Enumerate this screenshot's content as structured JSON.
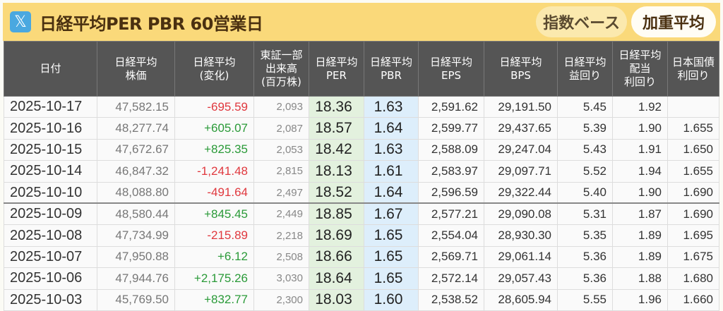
{
  "header": {
    "icon": "x-logo-icon",
    "title": "日経平均PER PBR 60営業日",
    "toggle_index": "指数ベース",
    "toggle_weighted": "加重平均"
  },
  "colors": {
    "title_bg": "#fad97a",
    "header_bg": "#555555",
    "per_bg": "#e3f1de",
    "pbr_bg": "#ddeefb",
    "negative": "#e0383e",
    "positive": "#2a9a38"
  },
  "table": {
    "columns": [
      [
        "日付"
      ],
      [
        "日経平均",
        "株価"
      ],
      [
        "日経平均",
        "(変化)"
      ],
      [
        "東証一部",
        "出来高",
        "(百万株)"
      ],
      [
        "日経平均",
        "PER"
      ],
      [
        "日経平均",
        "PBR"
      ],
      [
        "日経平均",
        "EPS"
      ],
      [
        "日経平均",
        "BPS"
      ],
      [
        "日経平均",
        "益回り"
      ],
      [
        "日経平均",
        "配当",
        "利回り"
      ],
      [
        "日本国債",
        "利回り"
      ]
    ],
    "rows": [
      [
        "2025-10-17",
        "47,582.15",
        "-695.59",
        "2,093",
        "18.36",
        "1.63",
        "2,591.62",
        "29,191.50",
        "5.45",
        "1.92",
        ""
      ],
      [
        "2025-10-16",
        "48,277.74",
        "+605.07",
        "2,087",
        "18.57",
        "1.64",
        "2,599.77",
        "29,437.65",
        "5.39",
        "1.90",
        "1.655"
      ],
      [
        "2025-10-15",
        "47,672.67",
        "+825.35",
        "2,053",
        "18.42",
        "1.63",
        "2,588.09",
        "29,247.04",
        "5.43",
        "1.91",
        "1.650"
      ],
      [
        "2025-10-14",
        "46,847.32",
        "-1,241.48",
        "2,815",
        "18.13",
        "1.61",
        "2,583.97",
        "29,097.71",
        "5.52",
        "1.94",
        "1.655"
      ],
      [
        "2025-10-10",
        "48,088.80",
        "-491.64",
        "2,497",
        "18.52",
        "1.64",
        "2,596.59",
        "29,322.44",
        "5.40",
        "1.90",
        "1.690"
      ],
      [
        "2025-10-09",
        "48,580.44",
        "+845.45",
        "2,449",
        "18.85",
        "1.67",
        "2,577.21",
        "29,090.08",
        "5.31",
        "1.87",
        "1.690"
      ],
      [
        "2025-10-08",
        "47,734.99",
        "-215.89",
        "2,218",
        "18.69",
        "1.65",
        "2,554.04",
        "28,930.30",
        "5.35",
        "1.89",
        "1.695"
      ],
      [
        "2025-10-07",
        "47,950.88",
        "+6.12",
        "2,508",
        "18.66",
        "1.65",
        "2,569.71",
        "29,061.14",
        "5.36",
        "1.89",
        "1.675"
      ],
      [
        "2025-10-06",
        "47,944.76",
        "+2,175.26",
        "3,030",
        "18.64",
        "1.65",
        "2,572.14",
        "29,057.43",
        "5.36",
        "1.88",
        "1.680"
      ],
      [
        "2025-10-03",
        "45,769.50",
        "+832.77",
        "2,300",
        "18.03",
        "1.60",
        "2,538.52",
        "28,605.94",
        "5.55",
        "1.96",
        "1.660"
      ]
    ]
  }
}
